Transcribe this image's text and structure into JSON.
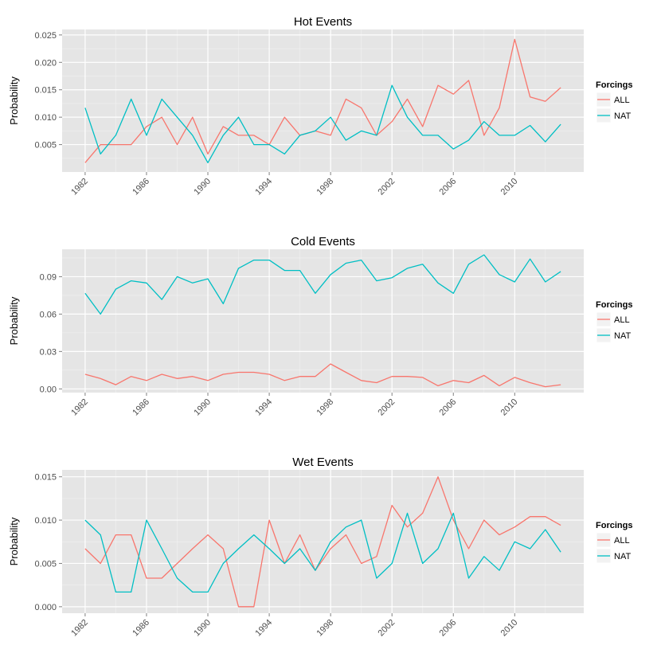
{
  "colors": {
    "ALL": "#F8766D",
    "NAT": "#00BFC4",
    "panel": "#E5E5E5",
    "grid": "#FFFFFF"
  },
  "legend": {
    "title": "Forcings",
    "items": [
      "ALL",
      "NAT"
    ],
    "position": "right"
  },
  "chart_data": [
    {
      "type": "line",
      "title": "Hot Events",
      "xlabel": "",
      "ylabel": "Probability",
      "xlim": [
        1980.5,
        2014.5
      ],
      "ylim": [
        0,
        0.026
      ],
      "yticks": [
        0.005,
        0.01,
        0.015,
        0.02,
        0.025
      ],
      "ytick_labels": [
        "0.005",
        "0.010",
        "0.015",
        "0.020",
        "0.025"
      ],
      "xticks": [
        1982,
        1986,
        1990,
        1994,
        1998,
        2002,
        2006,
        2010
      ],
      "x": [
        1982,
        1983,
        1984,
        1985,
        1986,
        1987,
        1988,
        1989,
        1990,
        1991,
        1992,
        1993,
        1994,
        1995,
        1996,
        1997,
        1998,
        1999,
        2000,
        2001,
        2002,
        2003,
        2004,
        2005,
        2006,
        2007,
        2008,
        2009,
        2010,
        2011,
        2012,
        2013
      ],
      "series": [
        {
          "name": "ALL",
          "values": [
            0.0017,
            0.005,
            0.005,
            0.005,
            0.0083,
            0.01,
            0.005,
            0.01,
            0.0033,
            0.0083,
            0.0067,
            0.0067,
            0.005,
            0.01,
            0.0067,
            0.0075,
            0.0067,
            0.0133,
            0.0117,
            0.0067,
            0.0092,
            0.0133,
            0.0083,
            0.0158,
            0.0142,
            0.0167,
            0.0067,
            0.0117,
            0.0242,
            0.0137,
            0.0129,
            0.0154
          ]
        },
        {
          "name": "NAT",
          "values": [
            0.0117,
            0.0033,
            0.0067,
            0.0133,
            0.0067,
            0.0133,
            0.01,
            0.0067,
            0.0017,
            0.0067,
            0.01,
            0.005,
            0.005,
            0.0033,
            0.0067,
            0.0075,
            0.01,
            0.0058,
            0.0075,
            0.0067,
            0.0158,
            0.01,
            0.0067,
            0.0067,
            0.0042,
            0.0058,
            0.0092,
            0.0067,
            0.0067,
            0.0085,
            0.0055,
            0.0087
          ]
        }
      ]
    },
    {
      "type": "line",
      "title": "Cold Events",
      "xlabel": "",
      "ylabel": "Probability",
      "xlim": [
        1980.5,
        2014.5
      ],
      "ylim": [
        -0.003,
        0.112
      ],
      "yticks": [
        0.0,
        0.03,
        0.06,
        0.09
      ],
      "ytick_labels": [
        "0.00",
        "0.03",
        "0.06",
        "0.09"
      ],
      "xticks": [
        1982,
        1986,
        1990,
        1994,
        1998,
        2002,
        2006,
        2010
      ],
      "x": [
        1982,
        1983,
        1984,
        1985,
        1986,
        1987,
        1988,
        1989,
        1990,
        1991,
        1992,
        1993,
        1994,
        1995,
        1996,
        1997,
        1998,
        1999,
        2000,
        2001,
        2002,
        2003,
        2004,
        2005,
        2006,
        2007,
        2008,
        2009,
        2010,
        2011,
        2012,
        2013
      ],
      "series": [
        {
          "name": "ALL",
          "values": [
            0.0117,
            0.0083,
            0.0033,
            0.01,
            0.0067,
            0.0117,
            0.0083,
            0.01,
            0.0067,
            0.0117,
            0.0133,
            0.0133,
            0.0117,
            0.0067,
            0.01,
            0.01,
            0.02,
            0.0133,
            0.0067,
            0.005,
            0.01,
            0.01,
            0.0092,
            0.0025,
            0.0067,
            0.005,
            0.0108,
            0.0025,
            0.0092,
            0.005,
            0.0017,
            0.0033
          ]
        },
        {
          "name": "NAT",
          "values": [
            0.0767,
            0.06,
            0.08,
            0.0867,
            0.085,
            0.0717,
            0.09,
            0.085,
            0.0883,
            0.0683,
            0.0967,
            0.1033,
            0.1033,
            0.095,
            0.095,
            0.0767,
            0.0917,
            0.1008,
            0.1033,
            0.0867,
            0.0892,
            0.0967,
            0.1,
            0.085,
            0.0767,
            0.1,
            0.1075,
            0.0917,
            0.0858,
            0.1042,
            0.0858,
            0.0942
          ]
        }
      ]
    },
    {
      "type": "line",
      "title": "Wet Events",
      "xlabel": "",
      "ylabel": "Probability",
      "xlim": [
        1980.5,
        2014.5
      ],
      "ylim": [
        -0.00075,
        0.0158
      ],
      "yticks": [
        0.0,
        0.005,
        0.01,
        0.015
      ],
      "ytick_labels": [
        "0.000",
        "0.005",
        "0.010",
        "0.015"
      ],
      "xticks": [
        1982,
        1986,
        1990,
        1994,
        1998,
        2002,
        2006,
        2010
      ],
      "x": [
        1982,
        1983,
        1984,
        1985,
        1986,
        1987,
        1988,
        1989,
        1990,
        1991,
        1992,
        1993,
        1994,
        1995,
        1996,
        1997,
        1998,
        1999,
        2000,
        2001,
        2002,
        2003,
        2004,
        2005,
        2006,
        2007,
        2008,
        2009,
        2010,
        2011,
        2012,
        2013
      ],
      "series": [
        {
          "name": "ALL",
          "values": [
            0.0067,
            0.005,
            0.0083,
            0.0083,
            0.0033,
            0.0033,
            0.005,
            0.0067,
            0.0083,
            0.0067,
            0.0,
            0.0,
            0.01,
            0.005,
            0.0083,
            0.0042,
            0.0067,
            0.0083,
            0.005,
            0.0058,
            0.0117,
            0.0092,
            0.0108,
            0.015,
            0.01,
            0.0067,
            0.01,
            0.0083,
            0.0092,
            0.0104,
            0.0104,
            0.0094
          ]
        },
        {
          "name": "NAT",
          "values": [
            0.01,
            0.0083,
            0.0017,
            0.0017,
            0.01,
            0.0067,
            0.0033,
            0.0017,
            0.0017,
            0.005,
            0.0067,
            0.0083,
            0.0067,
            0.005,
            0.0067,
            0.0042,
            0.0075,
            0.0092,
            0.01,
            0.0033,
            0.005,
            0.0108,
            0.005,
            0.0067,
            0.0108,
            0.0033,
            0.0058,
            0.0042,
            0.0075,
            0.0067,
            0.0089,
            0.0063
          ]
        }
      ]
    }
  ]
}
